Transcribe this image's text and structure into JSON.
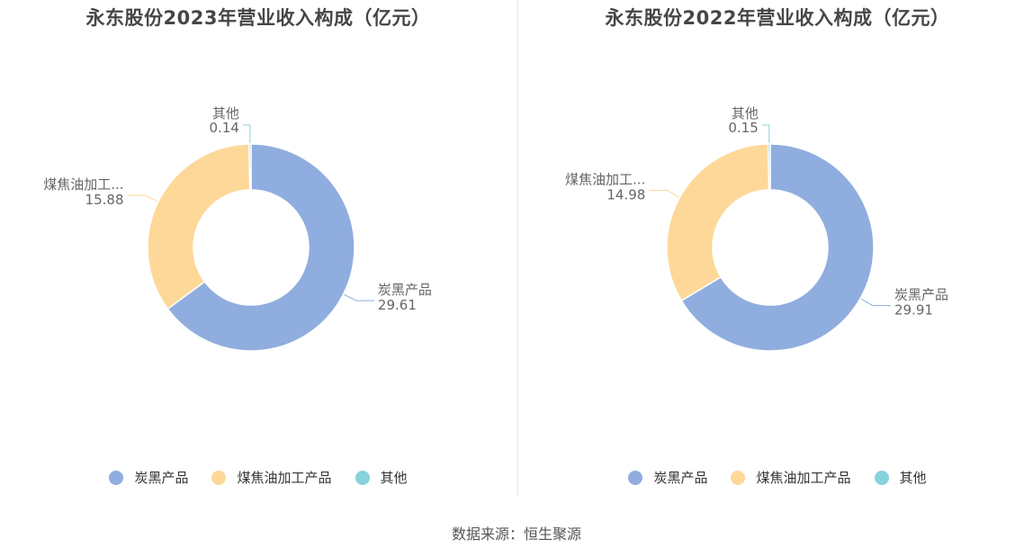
{
  "colors": {
    "炭黑产品": "#8fadde",
    "煤焦油加工产品": "#fdd899",
    "其他": "#87d2dc"
  },
  "chart_data": [
    {
      "type": "pie",
      "title": "永东股份2023年营业收入构成（亿元）",
      "labels": [
        "炭黑产品",
        "煤焦油加工产品",
        "其他"
      ],
      "display_labels": [
        "炭黑产品",
        "煤焦油加工...",
        "其他"
      ],
      "values": [
        29.61,
        15.88,
        0.14
      ],
      "value_labels": [
        "29.61",
        "15.88",
        "0.14"
      ]
    },
    {
      "type": "pie",
      "title": "永东股份2022年营业收入构成（亿元）",
      "labels": [
        "炭黑产品",
        "煤焦油加工产品",
        "其他"
      ],
      "display_labels": [
        "炭黑产品",
        "煤焦油加工...",
        "其他"
      ],
      "values": [
        29.91,
        14.98,
        0.15
      ],
      "value_labels": [
        "29.91",
        "14.98",
        "0.15"
      ]
    }
  ],
  "legend": [
    "炭黑产品",
    "煤焦油加工产品",
    "其他"
  ],
  "source": "数据来源：恒生聚源"
}
